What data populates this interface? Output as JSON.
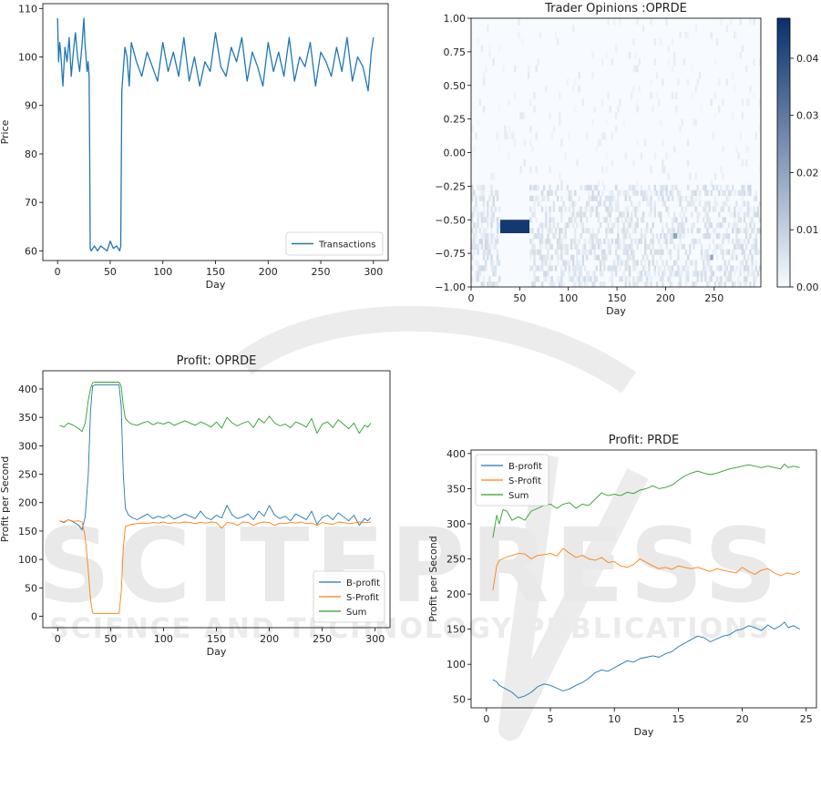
{
  "watermark": {
    "main": "SCITEPRESS",
    "sub": "SCIENCE AND TECHNOLOGY PUBLICATIONS"
  },
  "chart_data": [
    {
      "id": "transactions",
      "type": "line",
      "title": "",
      "xlabel": "Day",
      "ylabel": "Price",
      "xlim": [
        -14,
        314
      ],
      "ylim": [
        58,
        111
      ],
      "xticks": [
        0,
        50,
        100,
        150,
        200,
        250,
        300
      ],
      "yticks": [
        60,
        70,
        80,
        90,
        100,
        110
      ],
      "legend_position": "lower-right",
      "series": [
        {
          "name": "Transactions",
          "color": "#1f77b4",
          "x": [
            0,
            1,
            2,
            3,
            5,
            7,
            9,
            11,
            13,
            15,
            17,
            19,
            21,
            23,
            25,
            26,
            27,
            28,
            29,
            30,
            30.5,
            31,
            32,
            35,
            38,
            41,
            44,
            47,
            50,
            53,
            56,
            59,
            60,
            61,
            62,
            64,
            66,
            68,
            70,
            75,
            80,
            85,
            90,
            95,
            100,
            105,
            110,
            115,
            120,
            125,
            130,
            135,
            140,
            145,
            150,
            155,
            160,
            165,
            170,
            175,
            180,
            185,
            190,
            195,
            200,
            205,
            210,
            215,
            220,
            225,
            230,
            235,
            240,
            245,
            250,
            255,
            260,
            265,
            270,
            275,
            280,
            285,
            290,
            295,
            298,
            300
          ],
          "y": [
            108,
            99,
            103,
            101,
            94,
            102,
            99,
            104,
            96,
            101,
            105,
            100,
            97,
            102,
            108,
            103,
            100,
            97,
            99,
            96,
            81,
            60.5,
            60,
            61,
            60,
            61,
            60.5,
            60,
            62,
            60.5,
            61,
            60,
            61,
            93,
            96,
            102,
            100,
            94,
            103,
            99,
            96,
            101,
            98,
            95,
            103,
            97,
            101,
            96,
            104,
            95,
            100,
            94,
            99,
            97,
            105,
            98,
            96,
            102,
            99,
            104,
            95,
            101,
            98,
            94,
            103,
            97,
            101,
            96,
            104,
            95,
            100,
            98,
            103,
            94,
            101,
            99,
            96,
            102,
            97,
            104,
            95,
            100,
            98,
            93,
            101,
            104
          ]
        }
      ]
    },
    {
      "id": "opinions",
      "type": "heatmap",
      "title": "Trader Opinions :OPRDE",
      "xlabel": "Day",
      "ylabel": "",
      "xlim": [
        0,
        298
      ],
      "ylim": [
        -1.0,
        1.0
      ],
      "xticks": [
        0,
        50,
        100,
        150,
        200,
        250
      ],
      "yticks": [
        -1.0,
        -0.75,
        -0.5,
        -0.25,
        0.0,
        0.25,
        0.5,
        0.75,
        1.0
      ],
      "ytick_labels": [
        "−1.00",
        "−0.75",
        "−0.50",
        "−0.25",
        "0.00",
        "0.25",
        "0.50",
        "0.75",
        "1.00"
      ],
      "colorbar": {
        "min": 0.0,
        "max": 0.047,
        "ticks": [
          0.0,
          0.01,
          0.02,
          0.03,
          0.04
        ],
        "tick_labels": [
          "0.00",
          "0.01",
          "0.02",
          "0.03",
          "0.04"
        ],
        "color_low": "#f7fbff",
        "color_high": "#08306b"
      },
      "hotspots": [
        {
          "day_start": 30,
          "day_end": 60,
          "op_low": -0.6,
          "op_high": -0.5,
          "value": 0.045
        },
        {
          "day_start": 208,
          "day_end": 212,
          "op_low": -0.64,
          "op_high": -0.6,
          "value": 0.02
        },
        {
          "day_start": 246,
          "day_end": 249,
          "op_low": -0.8,
          "op_high": -0.76,
          "value": 0.02
        }
      ]
    },
    {
      "id": "profit_oprde",
      "type": "line",
      "title": "Profit: OPRDE",
      "xlabel": "Day",
      "ylabel": "Profit per Second",
      "xlim": [
        -14,
        314
      ],
      "ylim": [
        -20,
        432
      ],
      "xticks": [
        0,
        50,
        100,
        150,
        200,
        250,
        300
      ],
      "yticks": [
        0,
        50,
        100,
        150,
        200,
        250,
        300,
        350,
        400
      ],
      "legend_position": "lower-right",
      "series": [
        {
          "name": "B-profit",
          "color": "#1f77b4",
          "x": [
            2,
            6,
            10,
            15,
            20,
            23,
            26,
            29,
            31,
            33,
            35,
            40,
            45,
            50,
            55,
            58,
            60,
            62,
            64,
            67,
            70,
            75,
            80,
            85,
            90,
            95,
            100,
            105,
            110,
            115,
            120,
            125,
            130,
            135,
            140,
            145,
            150,
            155,
            160,
            165,
            170,
            175,
            180,
            185,
            190,
            195,
            200,
            205,
            210,
            215,
            220,
            225,
            230,
            235,
            240,
            245,
            250,
            255,
            260,
            265,
            270,
            275,
            280,
            285,
            290,
            293,
            296
          ],
          "y": [
            168,
            165,
            170,
            166,
            160,
            152,
            175,
            250,
            360,
            405,
            407,
            407,
            407,
            407,
            407,
            407,
            370,
            250,
            190,
            178,
            174,
            170,
            175,
            180,
            172,
            176,
            173,
            178,
            171,
            175,
            180,
            176,
            172,
            185,
            174,
            170,
            178,
            173,
            195,
            178,
            172,
            175,
            180,
            170,
            185,
            176,
            195,
            178,
            172,
            176,
            168,
            180,
            175,
            170,
            185,
            162,
            174,
            178,
            170,
            182,
            175,
            168,
            178,
            160,
            172,
            168,
            174
          ]
        },
        {
          "name": "S-Profit",
          "color": "#ff7f0e",
          "x": [
            2,
            6,
            10,
            15,
            20,
            23,
            26,
            29,
            31,
            33,
            35,
            40,
            45,
            50,
            55,
            58,
            60,
            62,
            64,
            67,
            70,
            75,
            80,
            85,
            90,
            95,
            100,
            105,
            110,
            115,
            120,
            125,
            130,
            135,
            140,
            145,
            150,
            155,
            160,
            165,
            170,
            175,
            180,
            185,
            190,
            195,
            200,
            205,
            210,
            215,
            220,
            225,
            230,
            235,
            240,
            245,
            250,
            255,
            260,
            265,
            270,
            275,
            280,
            285,
            290,
            293,
            296
          ],
          "y": [
            168,
            166,
            170,
            167,
            168,
            166,
            140,
            80,
            30,
            6,
            5,
            5,
            5,
            5,
            5,
            5,
            40,
            120,
            158,
            160,
            162,
            163,
            164,
            163,
            165,
            164,
            166,
            163,
            165,
            164,
            166,
            165,
            163,
            165,
            164,
            166,
            165,
            155,
            165,
            164,
            160,
            166,
            165,
            160,
            164,
            166,
            165,
            160,
            164,
            163,
            165,
            164,
            166,
            163,
            164,
            160,
            165,
            163,
            162,
            166,
            165,
            163,
            164,
            166,
            165,
            165,
            166
          ]
        },
        {
          "name": "Sum",
          "color": "#2ca02c",
          "x": [
            2,
            6,
            10,
            15,
            20,
            23,
            26,
            29,
            31,
            33,
            35,
            40,
            45,
            50,
            55,
            58,
            60,
            62,
            64,
            67,
            70,
            75,
            80,
            85,
            90,
            95,
            100,
            105,
            110,
            115,
            120,
            125,
            130,
            135,
            140,
            145,
            150,
            155,
            160,
            165,
            170,
            175,
            180,
            185,
            190,
            195,
            200,
            205,
            210,
            215,
            220,
            225,
            230,
            235,
            240,
            245,
            250,
            255,
            260,
            265,
            270,
            275,
            280,
            285,
            290,
            293,
            296
          ],
          "y": [
            336,
            333,
            340,
            336,
            330,
            325,
            340,
            380,
            400,
            411,
            412,
            412,
            412,
            412,
            412,
            412,
            405,
            370,
            348,
            342,
            338,
            336,
            340,
            343,
            337,
            341,
            338,
            342,
            336,
            340,
            344,
            340,
            336,
            342,
            338,
            333,
            342,
            331,
            350,
            340,
            335,
            340,
            343,
            332,
            348,
            340,
            352,
            340,
            335,
            338,
            332,
            342,
            338,
            333,
            348,
            322,
            338,
            342,
            332,
            346,
            338,
            330,
            340,
            322,
            336,
            333,
            340
          ]
        }
      ]
    },
    {
      "id": "profit_prde",
      "type": "line",
      "title": "Profit: PRDE",
      "xlabel": "Day",
      "ylabel": "Profit per Second",
      "xlim": [
        -1.2,
        25.8
      ],
      "ylim": [
        38,
        405
      ],
      "xticks": [
        0,
        5,
        10,
        15,
        20,
        25
      ],
      "yticks": [
        50,
        100,
        150,
        200,
        250,
        300,
        350,
        400
      ],
      "legend_position": "upper-left",
      "series": [
        {
          "name": "B-profit",
          "color": "#1f77b4",
          "x": [
            0.5,
            0.8,
            1.0,
            1.5,
            2.0,
            2.5,
            3.0,
            3.5,
            4.0,
            4.5,
            5.0,
            5.5,
            6.0,
            6.5,
            7.0,
            7.5,
            8.0,
            8.5,
            9.0,
            9.5,
            10.0,
            10.5,
            11.0,
            11.5,
            12.0,
            12.5,
            13.0,
            13.5,
            14.0,
            14.5,
            15.0,
            15.5,
            16.0,
            16.5,
            17.0,
            17.5,
            18.0,
            18.5,
            19.0,
            19.5,
            20.0,
            20.5,
            21.0,
            21.5,
            22.0,
            22.5,
            23.0,
            23.3,
            23.6,
            24.0,
            24.5
          ],
          "y": [
            78,
            75,
            70,
            65,
            60,
            52,
            55,
            60,
            68,
            72,
            70,
            66,
            62,
            65,
            70,
            74,
            80,
            88,
            92,
            90,
            95,
            100,
            105,
            103,
            108,
            110,
            112,
            110,
            115,
            118,
            125,
            130,
            135,
            140,
            138,
            132,
            136,
            140,
            142,
            148,
            150,
            155,
            152,
            148,
            156,
            150,
            155,
            160,
            152,
            155,
            150
          ]
        },
        {
          "name": "S-Profit",
          "color": "#ff7f0e",
          "x": [
            0.5,
            0.8,
            1.0,
            1.5,
            2.0,
            2.5,
            3.0,
            3.5,
            4.0,
            4.5,
            5.0,
            5.5,
            6.0,
            6.5,
            7.0,
            7.5,
            8.0,
            8.5,
            9.0,
            9.5,
            10.0,
            10.5,
            11.0,
            11.5,
            12.0,
            12.5,
            13.0,
            13.5,
            14.0,
            14.5,
            15.0,
            15.5,
            16.0,
            16.5,
            17.0,
            17.5,
            18.0,
            18.5,
            19.0,
            19.5,
            20.0,
            20.5,
            21.0,
            21.5,
            22.0,
            22.5,
            23.0,
            23.5,
            24.0,
            24.5
          ],
          "y": [
            205,
            240,
            248,
            252,
            255,
            258,
            257,
            250,
            255,
            256,
            258,
            254,
            265,
            258,
            252,
            255,
            250,
            248,
            252,
            245,
            246,
            240,
            238,
            242,
            250,
            245,
            240,
            236,
            238,
            235,
            240,
            238,
            236,
            238,
            235,
            232,
            236,
            234,
            232,
            230,
            238,
            232,
            228,
            234,
            236,
            230,
            226,
            230,
            228,
            232
          ]
        },
        {
          "name": "Sum",
          "color": "#2ca02c",
          "x": [
            0.5,
            0.8,
            1.0,
            1.3,
            1.6,
            2.0,
            2.5,
            3.0,
            3.5,
            4.0,
            4.5,
            5.0,
            5.5,
            6.0,
            6.5,
            7.0,
            7.5,
            8.0,
            8.5,
            9.0,
            9.5,
            10.0,
            10.5,
            11.0,
            11.5,
            12.0,
            12.5,
            13.0,
            13.5,
            14.0,
            14.5,
            15.0,
            15.5,
            16.0,
            16.5,
            17.0,
            17.5,
            18.0,
            18.5,
            19.0,
            19.5,
            20.0,
            20.5,
            21.0,
            21.5,
            22.0,
            22.5,
            23.0,
            23.3,
            23.6,
            24.0,
            24.5
          ],
          "y": [
            280,
            312,
            300,
            320,
            318,
            305,
            310,
            305,
            318,
            322,
            326,
            328,
            322,
            328,
            330,
            322,
            328,
            326,
            335,
            344,
            340,
            342,
            340,
            345,
            343,
            348,
            350,
            354,
            350,
            352,
            355,
            362,
            368,
            372,
            375,
            372,
            370,
            372,
            375,
            378,
            380,
            382,
            384,
            382,
            380,
            382,
            380,
            378,
            385,
            380,
            382,
            380
          ]
        }
      ]
    }
  ]
}
